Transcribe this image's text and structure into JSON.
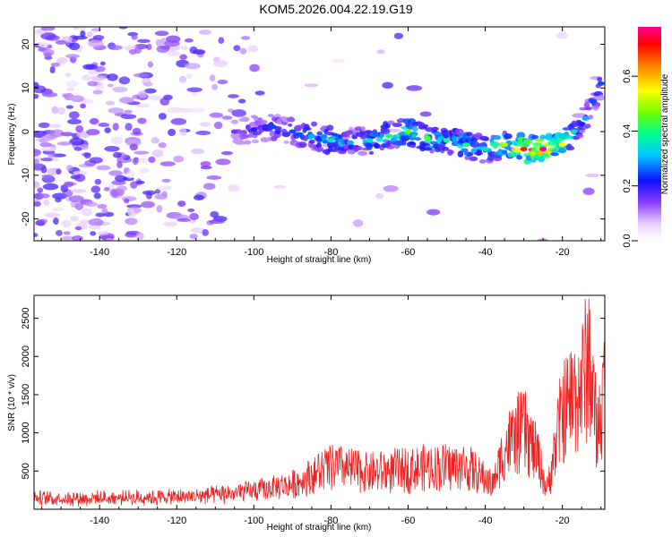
{
  "title": "KOM5.2026.004.22.19.G19",
  "chart_data": [
    {
      "type": "heatmap",
      "xlabel": "Height of straight line (km)",
      "ylabel": "Frequency (Hz)",
      "xlim": [
        -157,
        -9
      ],
      "ylim": [
        -25,
        24
      ],
      "xticks": [
        -140,
        -120,
        -100,
        -80,
        -60,
        -40,
        -20
      ],
      "yticks": [
        -20,
        -10,
        0,
        10,
        20
      ],
      "colorbar": {
        "label": "Normalized spectral amplitude",
        "range": [
          0.0,
          0.78
        ],
        "ticks": [
          0.0,
          0.2,
          0.4,
          0.6
        ]
      },
      "ridge": {
        "x": [
          -105,
          -100,
          -95,
          -90,
          -85,
          -80,
          -75,
          -70,
          -65,
          -60,
          -55,
          -50,
          -45,
          -40,
          -35,
          -30,
          -25,
          -20,
          -17,
          -14,
          -12,
          -10
        ],
        "y": [
          0,
          0.5,
          1,
          0,
          -1,
          -2,
          -2.5,
          -2,
          -1,
          0,
          -1.5,
          -2,
          -3,
          -4,
          -3,
          -4,
          -4,
          -3,
          0,
          3,
          7,
          11
        ],
        "amplitude": [
          0.15,
          0.2,
          0.25,
          0.25,
          0.3,
          0.35,
          0.3,
          0.35,
          0.4,
          0.45,
          0.45,
          0.4,
          0.4,
          0.35,
          0.5,
          0.7,
          0.78,
          0.55,
          0.35,
          0.3,
          0.25,
          0.25
        ]
      }
    },
    {
      "type": "line",
      "xlabel": "Height of straight line (km)",
      "ylabel": "SNR (10 * v/v)",
      "xlim": [
        -157,
        -9
      ],
      "ylim": [
        0,
        2800
      ],
      "xticks": [
        -140,
        -120,
        -100,
        -80,
        -60,
        -40,
        -20
      ],
      "yticks": [
        500,
        1000,
        1500,
        2000,
        2500
      ],
      "series": [
        {
          "name": "SNR",
          "color": "#ee2222",
          "envelope_x": [
            -157,
            -140,
            -120,
            -110,
            -100,
            -90,
            -85,
            -80,
            -75,
            -70,
            -60,
            -50,
            -45,
            -40,
            -38,
            -35,
            -30,
            -26,
            -24,
            -20,
            -15,
            -13,
            -11,
            -9
          ],
          "envelope_y": [
            180,
            180,
            200,
            230,
            300,
            400,
            550,
            700,
            650,
            600,
            650,
            700,
            700,
            500,
            400,
            1000,
            1300,
            800,
            300,
            1600,
            2000,
            2500,
            1200,
            2000
          ]
        }
      ]
    }
  ]
}
